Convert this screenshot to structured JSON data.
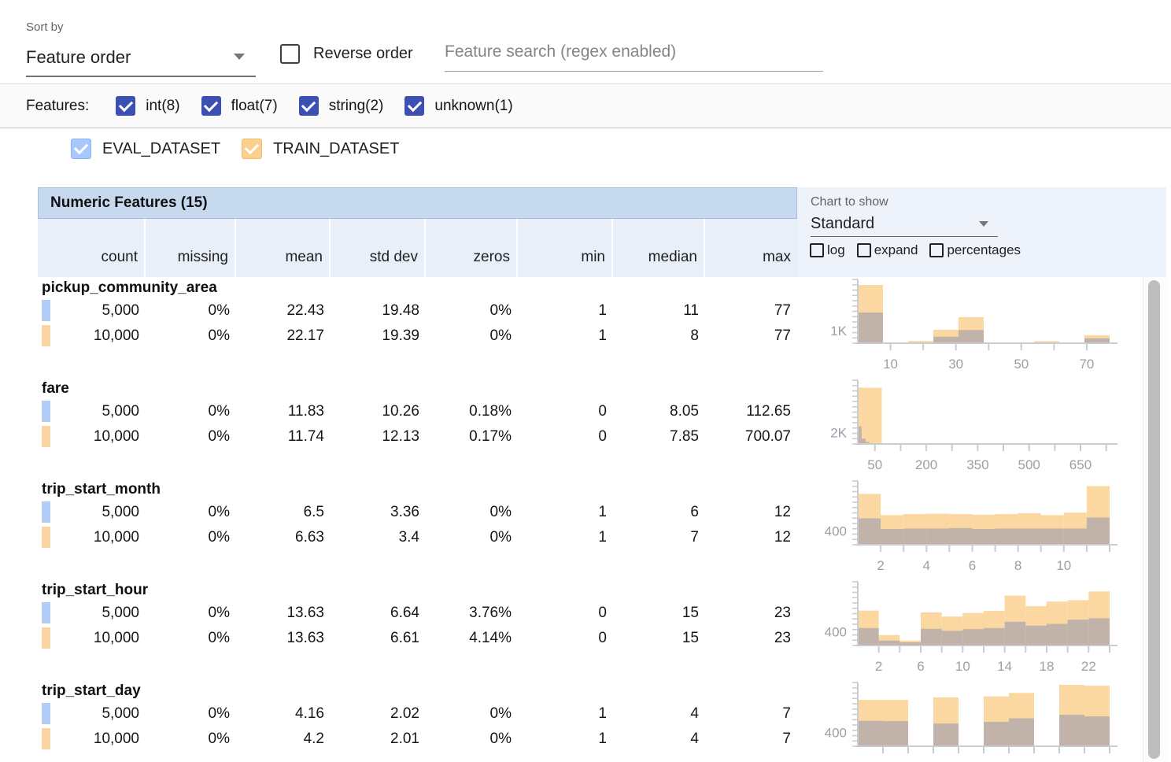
{
  "sort": {
    "label": "Sort by",
    "value": "Feature order"
  },
  "reverse": {
    "label": "Reverse order",
    "checked": false
  },
  "search": {
    "placeholder": "Feature search (regex enabled)"
  },
  "filters": {
    "label": "Features:",
    "items": [
      {
        "label": "int(8)",
        "checked": true
      },
      {
        "label": "float(7)",
        "checked": true
      },
      {
        "label": "string(2)",
        "checked": true
      },
      {
        "label": "unknown(1)",
        "checked": true
      }
    ]
  },
  "datasets": [
    {
      "name": "EVAL_DATASET",
      "color": "#b3ccf7",
      "checked": true
    },
    {
      "name": "TRAIN_DATASET",
      "color": "#f8d5a2",
      "checked": true
    }
  ],
  "table": {
    "title": "Numeric Features (15)",
    "columns": [
      "count",
      "missing",
      "mean",
      "std dev",
      "zeros",
      "min",
      "median",
      "max"
    ]
  },
  "chart_controls": {
    "label": "Chart to show",
    "value": "Standard",
    "toggles": [
      "log",
      "expand",
      "percentages"
    ]
  },
  "features": [
    {
      "name": "pickup_community_area",
      "rows": [
        {
          "dataset": "EVAL_DATASET",
          "values": [
            "5,000",
            "0%",
            "22.43",
            "19.48",
            "0%",
            "1",
            "11",
            "77"
          ]
        },
        {
          "dataset": "TRAIN_DATASET",
          "values": [
            "10,000",
            "0%",
            "22.17",
            "19.39",
            "0%",
            "1",
            "8",
            "77"
          ]
        }
      ]
    },
    {
      "name": "fare",
      "rows": [
        {
          "dataset": "EVAL_DATASET",
          "values": [
            "5,000",
            "0%",
            "11.83",
            "10.26",
            "0.18%",
            "0",
            "8.05",
            "112.65"
          ]
        },
        {
          "dataset": "TRAIN_DATASET",
          "values": [
            "10,000",
            "0%",
            "11.74",
            "12.13",
            "0.17%",
            "0",
            "7.85",
            "700.07"
          ]
        }
      ]
    },
    {
      "name": "trip_start_month",
      "rows": [
        {
          "dataset": "EVAL_DATASET",
          "values": [
            "5,000",
            "0%",
            "6.5",
            "3.36",
            "0%",
            "1",
            "6",
            "12"
          ]
        },
        {
          "dataset": "TRAIN_DATASET",
          "values": [
            "10,000",
            "0%",
            "6.63",
            "3.4",
            "0%",
            "1",
            "7",
            "12"
          ]
        }
      ]
    },
    {
      "name": "trip_start_hour",
      "rows": [
        {
          "dataset": "EVAL_DATASET",
          "values": [
            "5,000",
            "0%",
            "13.63",
            "6.64",
            "3.76%",
            "0",
            "15",
            "23"
          ]
        },
        {
          "dataset": "TRAIN_DATASET",
          "values": [
            "10,000",
            "0%",
            "13.63",
            "6.61",
            "4.14%",
            "0",
            "15",
            "23"
          ]
        }
      ]
    },
    {
      "name": "trip_start_day",
      "rows": [
        {
          "dataset": "EVAL_DATASET",
          "values": [
            "5,000",
            "0%",
            "4.16",
            "2.02",
            "0%",
            "1",
            "4",
            "7"
          ]
        },
        {
          "dataset": "TRAIN_DATASET",
          "values": [
            "10,000",
            "0%",
            "4.2",
            "2.01",
            "0%",
            "1",
            "4",
            "7"
          ]
        }
      ]
    }
  ],
  "chart_data": [
    {
      "type": "bar",
      "feature": "pickup_community_area",
      "series_names": [
        "TRAIN_DATASET",
        "EVAL_DATASET"
      ],
      "y_label": {
        "text": "1K",
        "value": 1000
      },
      "ylim": [
        0,
        4900
      ],
      "x_range": [
        0,
        77
      ],
      "x_tick_labels": [
        10,
        30,
        50,
        70
      ],
      "x_minor_ticks": [
        10,
        20,
        30,
        40,
        50,
        60,
        70
      ],
      "bins": [
        {
          "x0": 0,
          "x1": 7.7,
          "train": 4650,
          "eval": 2450
        },
        {
          "x0": 7.7,
          "x1": 15.4,
          "train": 60,
          "eval": 40
        },
        {
          "x0": 15.4,
          "x1": 23.1,
          "train": 175,
          "eval": 50
        },
        {
          "x0": 23.1,
          "x1": 30.8,
          "train": 1070,
          "eval": 520
        },
        {
          "x0": 30.8,
          "x1": 38.5,
          "train": 2075,
          "eval": 1050
        },
        {
          "x0": 38.5,
          "x1": 46.2,
          "train": 25,
          "eval": 15
        },
        {
          "x0": 46.2,
          "x1": 53.9,
          "train": 20,
          "eval": 10
        },
        {
          "x0": 53.9,
          "x1": 61.6,
          "train": 160,
          "eval": 40
        },
        {
          "x0": 61.6,
          "x1": 69.3,
          "train": 50,
          "eval": 20
        },
        {
          "x0": 69.3,
          "x1": 77,
          "train": 630,
          "eval": 400
        }
      ]
    },
    {
      "type": "bar",
      "feature": "fare",
      "series_names": [
        "TRAIN_DATASET",
        "EVAL_DATASET"
      ],
      "y_label": {
        "text": "2K",
        "value": 2000
      },
      "ylim": [
        0,
        10800
      ],
      "x_range": [
        0,
        735
      ],
      "x_tick_labels": [
        50,
        200,
        350,
        500,
        650
      ],
      "x_minor_ticks": [
        50,
        125,
        200,
        275,
        350,
        425,
        500,
        575,
        650,
        725
      ],
      "bins": [
        {
          "x0": 0,
          "x1": 70,
          "train": 9900,
          "eval": 0
        },
        {
          "x0": 0,
          "x1": 11.2,
          "train": 0,
          "eval": 3100
        },
        {
          "x0": 11.2,
          "x1": 22.4,
          "train": 0,
          "eval": 950
        },
        {
          "x0": 22.4,
          "x1": 33.6,
          "train": 0,
          "eval": 350
        }
      ]
    },
    {
      "type": "bar",
      "feature": "trip_start_month",
      "series_names": [
        "TRAIN_DATASET",
        "EVAL_DATASET"
      ],
      "y_label": {
        "text": "400",
        "value": 400
      },
      "ylim": [
        0,
        1760
      ],
      "x_range": [
        1,
        12
      ],
      "x_tick_labels": [
        2,
        4,
        6,
        8,
        10
      ],
      "x_minor_ticks": [
        2,
        3,
        4,
        5,
        6,
        7,
        8,
        9,
        10,
        11,
        12
      ],
      "bins": [
        {
          "x0": 1,
          "x1": 2,
          "train": 1460,
          "eval": 755
        },
        {
          "x0": 2,
          "x1": 3,
          "train": 850,
          "eval": 450
        },
        {
          "x0": 3,
          "x1": 4,
          "train": 880,
          "eval": 465
        },
        {
          "x0": 4,
          "x1": 5,
          "train": 890,
          "eval": 465
        },
        {
          "x0": 5,
          "x1": 6,
          "train": 880,
          "eval": 480
        },
        {
          "x0": 6,
          "x1": 7,
          "train": 860,
          "eval": 450
        },
        {
          "x0": 7,
          "x1": 8,
          "train": 880,
          "eval": 465
        },
        {
          "x0": 8,
          "x1": 9,
          "train": 905,
          "eval": 465
        },
        {
          "x0": 9,
          "x1": 10,
          "train": 850,
          "eval": 465
        },
        {
          "x0": 10,
          "x1": 11,
          "train": 920,
          "eval": 465
        },
        {
          "x0": 11,
          "x1": 12,
          "train": 1680,
          "eval": 780
        }
      ]
    },
    {
      "type": "bar",
      "feature": "trip_start_hour",
      "series_names": [
        "TRAIN_DATASET",
        "EVAL_DATASET"
      ],
      "y_label": {
        "text": "400",
        "value": 400
      },
      "ylim": [
        0,
        1760
      ],
      "x_range": [
        0,
        24
      ],
      "x_tick_labels": [
        2,
        6,
        10,
        14,
        18,
        22
      ],
      "x_minor_ticks": [
        2,
        4,
        6,
        8,
        10,
        12,
        14,
        16,
        18,
        20,
        22,
        24
      ],
      "bins": [
        {
          "x0": 0,
          "x1": 2,
          "train": 1000,
          "eval": 500
        },
        {
          "x0": 2,
          "x1": 4,
          "train": 300,
          "eval": 140
        },
        {
          "x0": 4,
          "x1": 6,
          "train": 140,
          "eval": 90
        },
        {
          "x0": 6,
          "x1": 8,
          "train": 950,
          "eval": 480
        },
        {
          "x0": 8,
          "x1": 10,
          "train": 830,
          "eval": 420
        },
        {
          "x0": 10,
          "x1": 12,
          "train": 930,
          "eval": 470
        },
        {
          "x0": 12,
          "x1": 14,
          "train": 990,
          "eval": 500
        },
        {
          "x0": 14,
          "x1": 16,
          "train": 1430,
          "eval": 680
        },
        {
          "x0": 16,
          "x1": 18,
          "train": 1130,
          "eval": 570
        },
        {
          "x0": 18,
          "x1": 20,
          "train": 1260,
          "eval": 620
        },
        {
          "x0": 20,
          "x1": 22,
          "train": 1300,
          "eval": 740
        },
        {
          "x0": 22,
          "x1": 24,
          "train": 1550,
          "eval": 780
        }
      ]
    },
    {
      "type": "bar",
      "feature": "trip_start_day",
      "series_names": [
        "TRAIN_DATASET",
        "EVAL_DATASET"
      ],
      "y_label": {
        "text": "400",
        "value": 400
      },
      "ylim": [
        0,
        1760
      ],
      "x_range": [
        1,
        7
      ],
      "x_tick_labels": [],
      "x_minor_ticks": [
        1.6,
        2.2,
        2.8,
        3.4,
        4,
        4.6,
        5.2,
        5.8,
        6.4,
        7
      ],
      "bins": [
        {
          "x0": 1,
          "x1": 1.6,
          "train": 1330,
          "eval": 730
        },
        {
          "x0": 1.6,
          "x1": 2.2,
          "train": 1330,
          "eval": 720
        },
        {
          "x0": 2.8,
          "x1": 3.4,
          "train": 1400,
          "eval": 650
        },
        {
          "x0": 4,
          "x1": 4.6,
          "train": 1430,
          "eval": 700
        },
        {
          "x0": 4.6,
          "x1": 5.2,
          "train": 1530,
          "eval": 800
        },
        {
          "x0": 5.8,
          "x1": 6.4,
          "train": 1760,
          "eval": 905
        },
        {
          "x0": 6.4,
          "x1": 7,
          "train": 1735,
          "eval": 855
        }
      ]
    }
  ]
}
